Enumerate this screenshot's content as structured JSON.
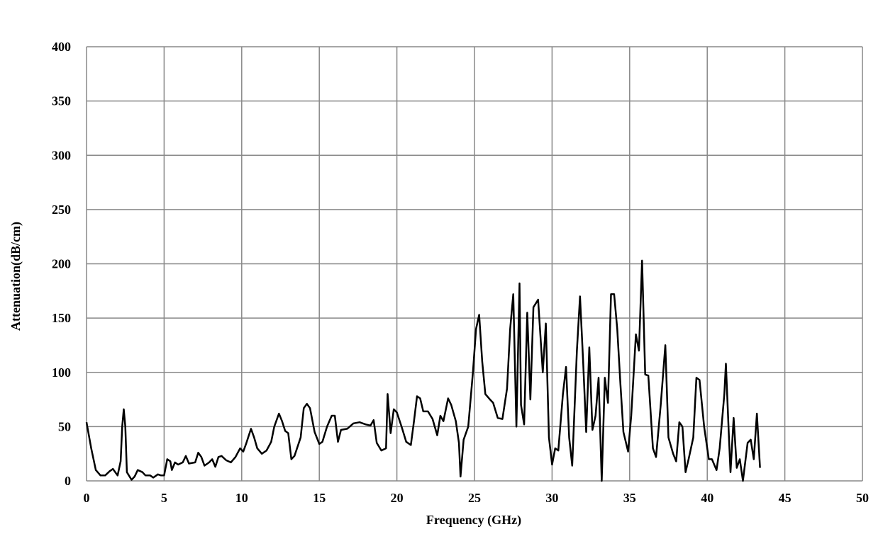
{
  "chart_data": {
    "type": "line",
    "xlabel": "Frequency (GHz)",
    "ylabel": "Attenuation(dB/cm)",
    "xlim": [
      0,
      50
    ],
    "ylim": [
      0,
      400
    ],
    "xticks": [
      0,
      5,
      10,
      15,
      20,
      25,
      30,
      35,
      40,
      45,
      50
    ],
    "yticks": [
      0,
      50,
      100,
      150,
      200,
      250,
      300,
      350,
      400
    ],
    "grid": true,
    "series": [
      {
        "color": "#000000",
        "x": [
          0,
          0.3,
          0.6,
          0.9,
          1.2,
          1.5,
          1.7,
          2.0,
          2.2,
          2.3,
          2.4,
          2.5,
          2.6,
          2.9,
          3.1,
          3.3,
          3.6,
          3.8,
          4.1,
          4.3,
          4.6,
          4.8,
          5.0,
          5.2,
          5.4,
          5.5,
          5.7,
          5.9,
          6.2,
          6.4,
          6.6,
          7.0,
          7.2,
          7.4,
          7.6,
          7.9,
          8.1,
          8.3,
          8.5,
          8.7,
          9.0,
          9.3,
          9.6,
          9.9,
          10.1,
          10.3,
          10.6,
          10.8,
          11.0,
          11.3,
          11.6,
          11.9,
          12.1,
          12.4,
          12.6,
          12.8,
          13.0,
          13.2,
          13.4,
          13.8,
          14.0,
          14.2,
          14.4,
          14.7,
          15.0,
          15.2,
          15.5,
          15.8,
          16.0,
          16.2,
          16.4,
          16.8,
          17.2,
          17.6,
          18.0,
          18.3,
          18.5,
          18.7,
          19.0,
          19.3,
          19.4,
          19.6,
          19.8,
          20.0,
          20.3,
          20.6,
          20.9,
          21.1,
          21.3,
          21.5,
          21.7,
          22.0,
          22.3,
          22.6,
          22.8,
          23.0,
          23.3,
          23.5,
          23.8,
          24.0,
          24.1,
          24.3,
          24.6,
          24.9,
          25.1,
          25.3,
          25.5,
          25.7,
          26.0,
          26.2,
          26.5,
          26.8,
          27.1,
          27.3,
          27.5,
          27.7,
          27.9,
          28.0,
          28.2,
          28.4,
          28.6,
          28.8,
          29.1,
          29.4,
          29.6,
          29.8,
          30.0,
          30.2,
          30.4,
          30.7,
          30.9,
          31.1,
          31.3,
          31.6,
          31.8,
          32.0,
          32.2,
          32.4,
          32.6,
          32.8,
          33.0,
          33.2,
          33.4,
          33.6,
          33.8,
          34.0,
          34.2,
          34.4,
          34.6,
          34.9,
          35.1,
          35.4,
          35.6,
          35.8,
          36.0,
          36.2,
          36.5,
          36.7,
          37.0,
          37.3,
          37.5,
          37.8,
          38.0,
          38.2,
          38.4,
          38.6,
          38.8,
          39.1,
          39.3,
          39.5,
          39.8,
          40.1,
          40.3,
          40.6,
          40.8,
          41.1,
          41.2,
          41.4,
          41.5,
          41.7,
          41.9,
          42.1,
          42.3,
          42.6,
          42.8,
          43.0,
          43.2,
          43.4
        ],
        "values": [
          54,
          30,
          10,
          5,
          5,
          9,
          11,
          5,
          18,
          50,
          66,
          50,
          8,
          1,
          4,
          10,
          8,
          5,
          5,
          3,
          6,
          5,
          5,
          20,
          18,
          10,
          17,
          15,
          17,
          23,
          16,
          17,
          26,
          22,
          14,
          17,
          20,
          13,
          22,
          23,
          19,
          17,
          22,
          30,
          27,
          35,
          48,
          40,
          30,
          25,
          28,
          36,
          50,
          62,
          55,
          46,
          44,
          20,
          23,
          40,
          67,
          71,
          67,
          45,
          34,
          36,
          50,
          60,
          60,
          36,
          47,
          48,
          53,
          54,
          52,
          51,
          56,
          35,
          28,
          30,
          80,
          44,
          66,
          63,
          50,
          36,
          33,
          55,
          78,
          76,
          64,
          64,
          57,
          42,
          60,
          55,
          76,
          70,
          55,
          35,
          4,
          38,
          50,
          100,
          140,
          153,
          110,
          80,
          75,
          72,
          58,
          57,
          85,
          140,
          172,
          50,
          182,
          70,
          52,
          155,
          75,
          160,
          167,
          100,
          145,
          40,
          15,
          30,
          28,
          80,
          105,
          40,
          14,
          120,
          170,
          110,
          45,
          123,
          47,
          60,
          95,
          0,
          95,
          72,
          172,
          172,
          140,
          90,
          45,
          27,
          60,
          135,
          120,
          203,
          98,
          97,
          30,
          22,
          70,
          125,
          40,
          25,
          18,
          54,
          50,
          8,
          20,
          40,
          95,
          93,
          50,
          20,
          20,
          10,
          30,
          80,
          108,
          40,
          8,
          58,
          12,
          20,
          0,
          35,
          38,
          20,
          62,
          12
        ]
      }
    ]
  }
}
